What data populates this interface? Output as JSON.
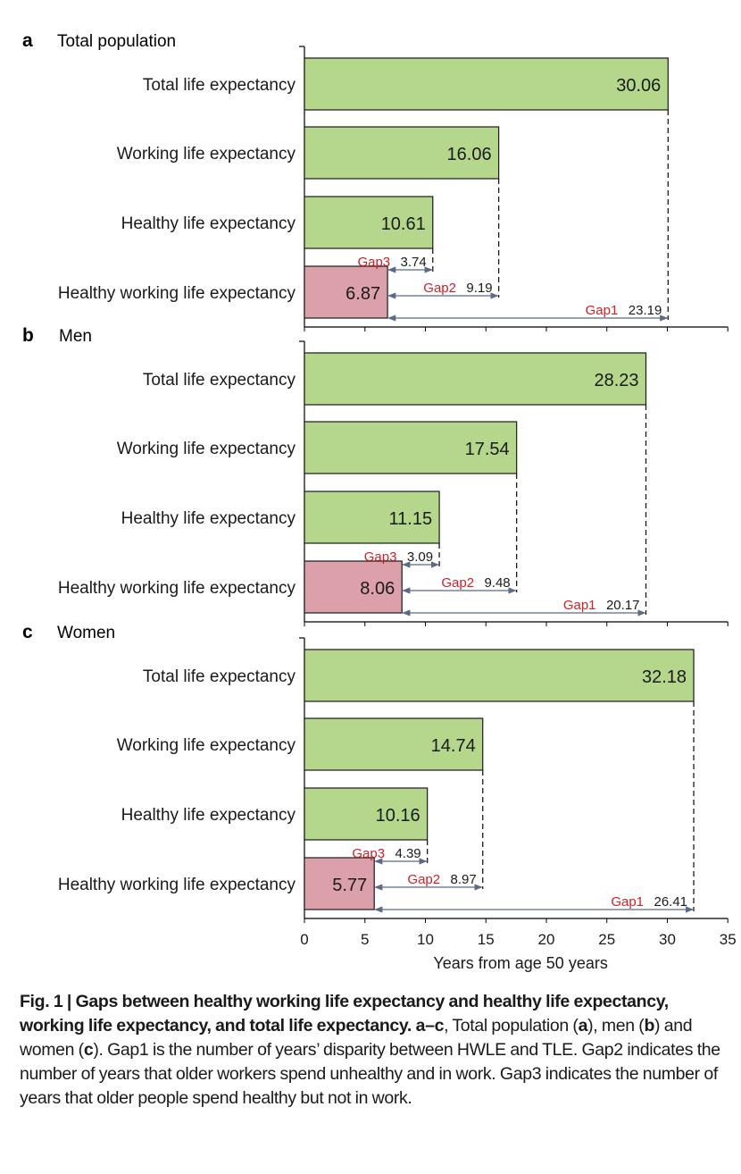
{
  "chart_data": [
    {
      "type": "bar",
      "orientation": "horizontal",
      "panel_letter": "a",
      "title": "Total population",
      "categories": [
        "Total life expectancy",
        "Working life expectancy",
        "Healthy life expectancy",
        "Healthy working life expectancy"
      ],
      "values": [
        30.06,
        16.06,
        10.61,
        6.87
      ],
      "value_labels": [
        "30.06",
        "16.06",
        "10.61",
        "6.87"
      ],
      "gaps": [
        {
          "label": "Gap3",
          "value": "3.74",
          "from": 6.87,
          "to": 10.61
        },
        {
          "label": "Gap2",
          "value": "9.19",
          "from": 6.87,
          "to": 16.06
        },
        {
          "label": "Gap1",
          "value": "23.19",
          "from": 6.87,
          "to": 30.06
        }
      ]
    },
    {
      "type": "bar",
      "orientation": "horizontal",
      "panel_letter": "b",
      "title": "Men",
      "categories": [
        "Total life expectancy",
        "Working life expectancy",
        "Healthy life expectancy",
        "Healthy working life expectancy"
      ],
      "values": [
        28.23,
        17.54,
        11.15,
        8.06
      ],
      "value_labels": [
        "28.23",
        "17.54",
        "11.15",
        "8.06"
      ],
      "gaps": [
        {
          "label": "Gap3",
          "value": "3.09",
          "from": 8.06,
          "to": 11.15
        },
        {
          "label": "Gap2",
          "value": "9.48",
          "from": 8.06,
          "to": 17.54
        },
        {
          "label": "Gap1",
          "value": "20.17",
          "from": 8.06,
          "to": 28.23
        }
      ]
    },
    {
      "type": "bar",
      "orientation": "horizontal",
      "panel_letter": "c",
      "title": "Women",
      "categories": [
        "Total life expectancy",
        "Working life expectancy",
        "Healthy life expectancy",
        "Healthy working life expectancy"
      ],
      "values": [
        32.18,
        14.74,
        10.16,
        5.77
      ],
      "value_labels": [
        "32.18",
        "14.74",
        "10.16",
        "5.77"
      ],
      "gaps": [
        {
          "label": "Gap3",
          "value": "4.39",
          "from": 5.77,
          "to": 10.16
        },
        {
          "label": "Gap2",
          "value": "8.97",
          "from": 5.77,
          "to": 14.74
        },
        {
          "label": "Gap1",
          "value": "26.41",
          "from": 5.77,
          "to": 32.18
        }
      ]
    }
  ],
  "axis": {
    "xlabel": "Years from age 50 years",
    "xlim": [
      0,
      35
    ],
    "ticks": [
      0,
      5,
      10,
      15,
      20,
      25,
      30,
      35
    ],
    "tick_labels": [
      "0",
      "5",
      "10",
      "15",
      "20",
      "25",
      "30",
      "35"
    ]
  },
  "colors": {
    "bar": "#b5d78b",
    "bar_highlight": "#dba0a9",
    "gap_label": "#d21f26",
    "arrow": "#5b6b86",
    "axis": "#000000"
  },
  "caption": {
    "fig_label": "Fig. 1",
    "separator": " | ",
    "title": "Gaps between healthy working life expectancy and healthy life expectancy, working life expectancy, and total life expectancy.",
    "panel_ref": "a–c",
    "text_1": ", Total population (",
    "ref_a": "a",
    "text_2": "), men (",
    "ref_b": "b",
    "text_3": ") and women (",
    "ref_c": "c",
    "text_4": "). Gap1 is the number of years’ disparity between HWLE and TLE. Gap2 indicates the number of years that older workers spend unhealthy and in work. Gap3 indicates the number of years that older people spend healthy but not in work."
  }
}
